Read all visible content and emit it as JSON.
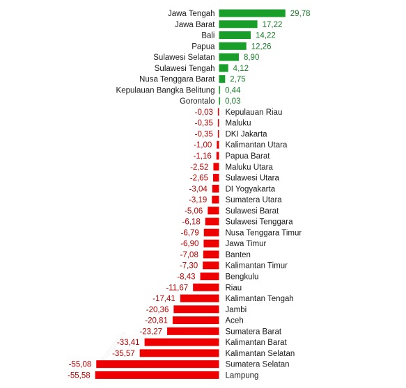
{
  "colors": {
    "positive": "#1a9e2a",
    "negative": "#ef0000",
    "positive_text": "#1a7f2a",
    "negative_text": "#b80000",
    "label": "#1a1a1a"
  },
  "chart_data": {
    "type": "bar",
    "orientation": "horizontal",
    "title": "",
    "xlabel": "",
    "ylabel": "",
    "grid": false,
    "decimal_separator": ",",
    "categories": [
      "Jawa Tengah",
      "Jawa Barat",
      "Bali",
      "Papua",
      "Sulawesi Selatan",
      "Sulawesi Tengah",
      "Nusa Tenggara Barat",
      "Kepulauan Bangka Belitung",
      "Gorontalo",
      "Kepulauan Riau",
      "Maluku",
      "DKI Jakarta",
      "Kalimantan Utara",
      "Papua Barat",
      "Maluku Utara",
      "Sulawesi Utara",
      "DI Yogyakarta",
      "Sumatera Utara",
      "Sulawesi Barat",
      "Sulawesi Tenggara",
      "Nusa Tenggara Timur",
      "Jawa Timur",
      "Banten",
      "Kalimantan Timur",
      "Bengkulu",
      "Riau",
      "Kalimantan Tengah",
      "Jambi",
      "Aceh",
      "Sumatera Barat",
      "Kalimantan Barat",
      "Kalimantan Selatan",
      "Sumatera Selatan",
      "Lampung"
    ],
    "values": [
      29.78,
      17.22,
      14.22,
      12.26,
      8.9,
      4.12,
      2.75,
      0.44,
      0.03,
      -0.03,
      -0.35,
      -0.35,
      -1.0,
      -1.16,
      -2.52,
      -2.65,
      -3.04,
      -3.19,
      -5.06,
      -6.18,
      -6.79,
      -6.9,
      -7.08,
      -7.3,
      -8.43,
      -11.67,
      -17.41,
      -20.36,
      -20.81,
      -23.27,
      -33.41,
      -35.57,
      -55.08,
      -55.58
    ],
    "value_labels": [
      "29,78",
      "17,22",
      "14,22",
      "12,26",
      "8,90",
      "4,12",
      "2,75",
      "0,44",
      "0,03",
      "-0,03",
      "-0,35",
      "-0,35",
      "-1,00",
      "-1,16",
      "-2,52",
      "-2,65",
      "-3,04",
      "-3,19",
      "-5,06",
      "-6,18",
      "-6,79",
      "-6,90",
      "-7,08",
      "-7,30",
      "-8,43",
      "-11,67",
      "-17,41",
      "-20,36",
      "-20,81",
      "-23,27",
      "-33,41",
      "-35,57",
      "-55,08",
      "-55,58"
    ]
  }
}
